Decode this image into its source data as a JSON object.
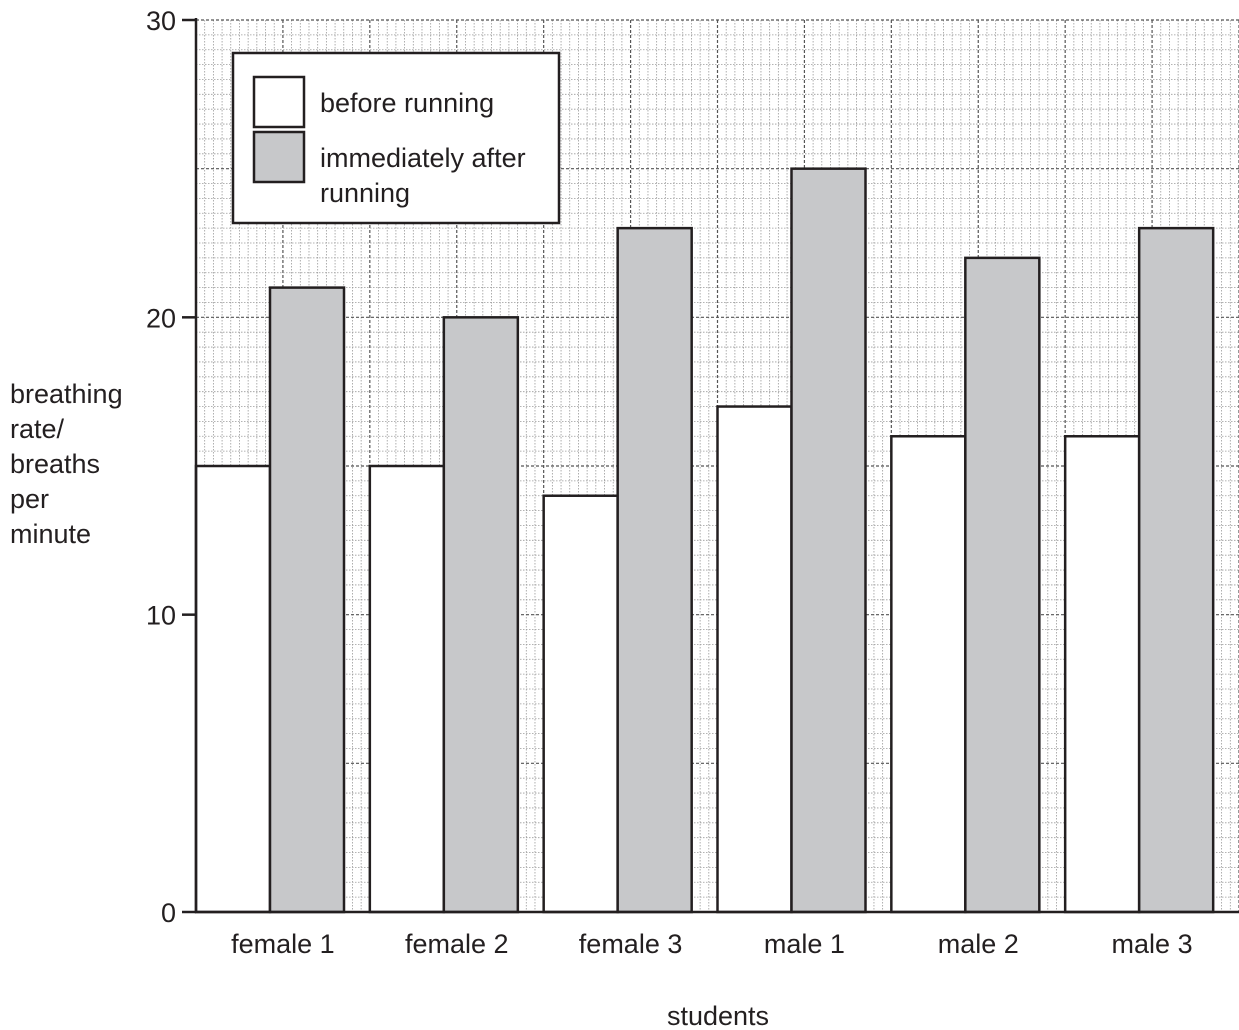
{
  "chart_data": {
    "type": "bar",
    "categories": [
      "female 1",
      "female 2",
      "female 3",
      "male 1",
      "male 2",
      "male 3"
    ],
    "series": [
      {
        "name": "before running",
        "values": [
          15,
          15,
          14,
          17,
          16,
          16
        ],
        "color": "#ffffff"
      },
      {
        "name": "immediately after running",
        "values": [
          21,
          20,
          23,
          25,
          22,
          23
        ],
        "color": "#c7c8ca"
      }
    ],
    "legend_lines": [
      [
        "before running"
      ],
      [
        "immediately after",
        "running"
      ]
    ],
    "xlabel": "students",
    "ylabel_lines": [
      "breathing",
      "rate/",
      "breaths",
      "per",
      "minute"
    ],
    "ylim": [
      0,
      30
    ],
    "yticks": [
      0,
      10,
      20,
      30
    ],
    "grid": true,
    "legend_position": "top-left"
  }
}
